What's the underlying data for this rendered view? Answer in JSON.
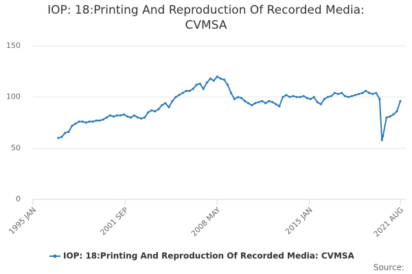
{
  "chart_data": {
    "type": "line",
    "title": "IOP: 18:Printing And Reproduction Of Recorded Media: CVMSA",
    "source": "Source:",
    "x": [
      "1996-11",
      "1997-02",
      "1997-05",
      "1997-08",
      "1997-11",
      "1998-02",
      "1998-05",
      "1998-08",
      "1998-11",
      "1999-02",
      "1999-05",
      "1999-08",
      "1999-11",
      "2000-02",
      "2000-05",
      "2000-08",
      "2000-11",
      "2001-02",
      "2001-05",
      "2001-08",
      "2001-11",
      "2002-02",
      "2002-05",
      "2002-08",
      "2002-11",
      "2003-02",
      "2003-05",
      "2003-08",
      "2003-11",
      "2004-02",
      "2004-05",
      "2004-08",
      "2004-11",
      "2005-02",
      "2005-05",
      "2005-08",
      "2005-11",
      "2006-02",
      "2006-05",
      "2006-08",
      "2006-11",
      "2007-02",
      "2007-05",
      "2007-08",
      "2007-11",
      "2008-02",
      "2008-05",
      "2008-08",
      "2008-11",
      "2009-02",
      "2009-05",
      "2009-08",
      "2009-11",
      "2010-02",
      "2010-05",
      "2010-08",
      "2010-11",
      "2011-02",
      "2011-05",
      "2011-08",
      "2011-11",
      "2012-02",
      "2012-05",
      "2012-08",
      "2012-11",
      "2013-02",
      "2013-05",
      "2013-08",
      "2013-11",
      "2014-02",
      "2014-05",
      "2014-08",
      "2014-11",
      "2015-02",
      "2015-05",
      "2015-08",
      "2015-11",
      "2016-02",
      "2016-05",
      "2016-08",
      "2016-11",
      "2017-02",
      "2017-05",
      "2017-08",
      "2017-11",
      "2018-02",
      "2018-05",
      "2018-08",
      "2018-11",
      "2019-02",
      "2019-05",
      "2019-08",
      "2019-11",
      "2020-02",
      "2020-04",
      "2020-05",
      "2020-08",
      "2020-11",
      "2021-02",
      "2021-05",
      "2021-08"
    ],
    "series": [
      {
        "name": "IOP: 18:Printing And Reproduction Of Recorded Media: CVMSA",
        "color": "#2b7bb9",
        "values": [
          60,
          61,
          65,
          66,
          72,
          74,
          76,
          76,
          75,
          76,
          76,
          77,
          77,
          78,
          80,
          82,
          81,
          82,
          82,
          83,
          81,
          80,
          82,
          80,
          79,
          80,
          85,
          87,
          86,
          88,
          92,
          94,
          90,
          96,
          100,
          102,
          104,
          106,
          106,
          108,
          112,
          113,
          108,
          114,
          118,
          116,
          120,
          118,
          117,
          112,
          104,
          98,
          100,
          99,
          96,
          94,
          92,
          94,
          95,
          96,
          94,
          96,
          95,
          93,
          91,
          100,
          102,
          100,
          101,
          100,
          100,
          101,
          99,
          98,
          100,
          95,
          93,
          98,
          100,
          101,
          104,
          103,
          104,
          101,
          100,
          101,
          102,
          103,
          104,
          106,
          104,
          103,
          104,
          98,
          58,
          62,
          80,
          81,
          83,
          86,
          96
        ]
      }
    ],
    "xlim": [
      "1995-01",
      "2021-08"
    ],
    "xticks": [
      {
        "value": "1995-01",
        "label": "1995 JAN"
      },
      {
        "value": "2001-09",
        "label": "2001 SEP"
      },
      {
        "value": "2008-05",
        "label": "2008 MAY"
      },
      {
        "value": "2015-01",
        "label": "2015 JAN"
      },
      {
        "value": "2021-08",
        "label": "2021 AUG"
      }
    ],
    "ylim": [
      0,
      150
    ],
    "yticks": [
      0,
      50,
      100,
      150
    ],
    "grid": true,
    "legend": "bottom"
  }
}
